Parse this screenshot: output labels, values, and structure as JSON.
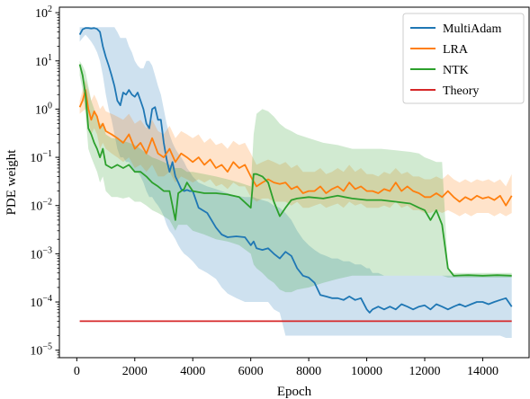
{
  "chart_data": {
    "type": "line",
    "xlabel": "Epoch",
    "ylabel": "PDE weight",
    "yscale": "log",
    "xlim": [
      -600,
      15600
    ],
    "ylim": [
      7e-06,
      130
    ],
    "xticks": [
      0,
      2000,
      4000,
      6000,
      8000,
      10000,
      12000,
      14000
    ],
    "xtick_labels": [
      "0",
      "2000",
      "4000",
      "6000",
      "8000",
      "10000",
      "12000",
      "14000"
    ],
    "ytick_mantissa": "10",
    "yticks": [
      {
        "value": 1e-05,
        "exp": "−5"
      },
      {
        "value": 0.0001,
        "exp": "−4"
      },
      {
        "value": 0.001,
        "exp": "−3"
      },
      {
        "value": 0.01,
        "exp": "−2"
      },
      {
        "value": 0.1,
        "exp": "−1"
      },
      {
        "value": 1,
        "exp": "0"
      },
      {
        "value": 10,
        "exp": "1"
      },
      {
        "value": 100,
        "exp": "2"
      }
    ],
    "grid": false,
    "legend_position": "top-right",
    "series": [
      {
        "name": "MultiAdam",
        "color": "#1f77b4",
        "x": [
          100,
          200,
          300,
          400,
          500,
          600,
          700,
          800,
          900,
          1000,
          1100,
          1200,
          1300,
          1400,
          1500,
          1600,
          1700,
          1800,
          1900,
          2000,
          2100,
          2200,
          2300,
          2400,
          2500,
          2600,
          2700,
          2800,
          2900,
          3000,
          3100,
          3200,
          3300,
          3400,
          3500,
          3600,
          3700,
          3800,
          3900,
          4000,
          4200,
          4500,
          4800,
          5000,
          5200,
          5500,
          5800,
          6000,
          6100,
          6200,
          6400,
          6600,
          6800,
          7000,
          7200,
          7400,
          7600,
          7800,
          8000,
          8200,
          8400,
          8600,
          8800,
          9000,
          9200,
          9400,
          9600,
          9800,
          10000,
          10100,
          10200,
          10400,
          10600,
          10800,
          11000,
          11200,
          11400,
          11600,
          11800,
          12000,
          12200,
          12400,
          12600,
          12800,
          13000,
          13200,
          13400,
          13600,
          13800,
          14000,
          14200,
          14400,
          14600,
          14800,
          15000
        ],
        "y": [
          35,
          45,
          48,
          48,
          47,
          48,
          46,
          40,
          20,
          12,
          8,
          5,
          3,
          1.5,
          1.2,
          2.2,
          2.0,
          2.5,
          2.0,
          1.8,
          2.2,
          1.5,
          1.0,
          0.5,
          0.4,
          1.0,
          1.1,
          0.6,
          0.6,
          0.2,
          0.09,
          0.05,
          0.08,
          0.04,
          0.03,
          0.022,
          0.02,
          0.021,
          0.02,
          0.02,
          0.009,
          0.007,
          0.0035,
          0.0025,
          0.0022,
          0.0023,
          0.0022,
          0.0015,
          0.0018,
          0.0013,
          0.0012,
          0.0013,
          0.001,
          0.0008,
          0.0011,
          0.0009,
          0.0005,
          0.00035,
          0.00032,
          0.00025,
          0.00014,
          0.00013,
          0.00012,
          0.00012,
          0.00011,
          0.00013,
          0.00011,
          0.00012,
          7e-05,
          6e-05,
          7e-05,
          8e-05,
          7e-05,
          8e-05,
          7e-05,
          9e-05,
          8e-05,
          7e-05,
          8e-05,
          8.5e-05,
          7e-05,
          9e-05,
          8e-05,
          7e-05,
          8e-05,
          9e-05,
          8e-05,
          9e-05,
          0.0001,
          0.0001,
          9e-05,
          0.0001,
          0.00011,
          0.00012,
          8e-05
        ],
        "band_low": [
          25,
          30,
          35,
          30,
          25,
          20,
          15,
          10,
          5,
          2,
          1,
          0.6,
          0.3,
          0.15,
          0.1,
          0.1,
          0.08,
          0.08,
          0.06,
          0.05,
          0.05,
          0.04,
          0.03,
          0.02,
          0.015,
          0.015,
          0.012,
          0.01,
          0.008,
          0.006,
          0.004,
          0.003,
          0.0025,
          0.002,
          0.0015,
          0.0012,
          0.001,
          0.0009,
          0.0008,
          0.0007,
          0.0005,
          0.0004,
          0.0003,
          0.0002,
          0.00015,
          0.00012,
          0.0001,
          0.0001,
          0.0001,
          0.0001,
          0.0001,
          0.0001,
          7e-05,
          6e-05,
          2e-05,
          2e-05,
          2e-05,
          2e-05,
          2e-05,
          2e-05,
          2e-05,
          2e-05,
          2e-05,
          2e-05,
          2e-05,
          2e-05,
          2e-05,
          2e-05,
          2e-05,
          2e-05,
          2e-05,
          2e-05,
          2e-05,
          2e-05,
          2e-05,
          2e-05,
          2e-05,
          2e-05,
          2e-05,
          2e-05,
          2e-05,
          2e-05,
          2e-05,
          2e-05,
          2e-05,
          2e-05,
          2e-05,
          2e-05,
          2e-05,
          2e-05,
          2e-05,
          2e-05,
          2e-05,
          1.8e-05,
          1.8e-05
        ],
        "band_high": [
          50,
          50,
          50,
          50,
          50,
          50,
          50,
          50,
          50,
          50,
          50,
          50,
          50,
          40,
          30,
          30,
          30,
          20,
          15,
          10,
          8,
          7,
          7,
          10,
          10,
          8,
          5,
          3,
          2,
          1,
          0.5,
          0.3,
          0.2,
          0.15,
          0.12,
          0.1,
          0.08,
          0.06,
          0.05,
          0.04,
          0.03,
          0.025,
          0.022,
          0.02,
          0.018,
          0.016,
          0.015,
          0.015,
          0.015,
          0.014,
          0.013,
          0.012,
          0.01,
          0.009,
          0.007,
          0.005,
          0.003,
          0.002,
          0.0015,
          0.0012,
          0.001,
          0.0009,
          0.0008,
          0.0008,
          0.0007,
          0.0007,
          0.0006,
          0.0006,
          0.0005,
          0.0005,
          0.0004,
          0.0004,
          0.00035,
          0.00035,
          0.00035,
          0.00035,
          0.00035,
          0.00035,
          0.00035,
          0.00035,
          0.00035,
          0.00035,
          0.00035,
          0.00035,
          0.00035,
          0.00035,
          0.00035,
          0.00035,
          0.00035,
          0.00035,
          0.00035,
          0.00035,
          0.00035,
          0.00035,
          0.00035
        ]
      },
      {
        "name": "LRA",
        "color": "#ff7f0e",
        "x": [
          100,
          200,
          300,
          400,
          500,
          600,
          700,
          800,
          900,
          1000,
          1200,
          1400,
          1600,
          1800,
          2000,
          2200,
          2400,
          2600,
          2800,
          3000,
          3200,
          3400,
          3600,
          3800,
          4000,
          4200,
          4400,
          4600,
          4800,
          5000,
          5200,
          5400,
          5600,
          5800,
          6000,
          6200,
          6400,
          6600,
          6800,
          7000,
          7200,
          7400,
          7600,
          7800,
          8000,
          8200,
          8400,
          8600,
          8800,
          9000,
          9200,
          9400,
          9600,
          9800,
          10000,
          10200,
          10400,
          10600,
          10800,
          11000,
          11200,
          11400,
          11600,
          11800,
          12000,
          12200,
          12400,
          12600,
          12800,
          13000,
          13200,
          13400,
          13600,
          13800,
          14000,
          14200,
          14400,
          14600,
          14800,
          15000
        ],
        "y": [
          1.1,
          1.5,
          2.5,
          1.0,
          0.6,
          0.9,
          0.7,
          0.4,
          0.5,
          0.35,
          0.3,
          0.25,
          0.2,
          0.3,
          0.15,
          0.2,
          0.12,
          0.25,
          0.12,
          0.1,
          0.15,
          0.08,
          0.12,
          0.1,
          0.08,
          0.1,
          0.07,
          0.09,
          0.06,
          0.07,
          0.05,
          0.08,
          0.06,
          0.07,
          0.04,
          0.025,
          0.03,
          0.035,
          0.03,
          0.028,
          0.03,
          0.022,
          0.025,
          0.018,
          0.02,
          0.02,
          0.025,
          0.018,
          0.022,
          0.025,
          0.02,
          0.03,
          0.022,
          0.025,
          0.02,
          0.02,
          0.018,
          0.022,
          0.02,
          0.03,
          0.02,
          0.025,
          0.02,
          0.018,
          0.015,
          0.015,
          0.018,
          0.015,
          0.02,
          0.015,
          0.012,
          0.015,
          0.013,
          0.016,
          0.014,
          0.015,
          0.013,
          0.016,
          0.01,
          0.016
        ],
        "band_low": [
          0.8,
          0.9,
          1.0,
          0.6,
          0.3,
          0.4,
          0.3,
          0.15,
          0.2,
          0.15,
          0.12,
          0.1,
          0.08,
          0.1,
          0.06,
          0.07,
          0.05,
          0.07,
          0.04,
          0.04,
          0.05,
          0.03,
          0.04,
          0.035,
          0.03,
          0.035,
          0.03,
          0.035,
          0.025,
          0.028,
          0.022,
          0.03,
          0.025,
          0.025,
          0.015,
          0.012,
          0.014,
          0.014,
          0.012,
          0.012,
          0.012,
          0.01,
          0.012,
          0.009,
          0.009,
          0.01,
          0.011,
          0.009,
          0.01,
          0.011,
          0.009,
          0.012,
          0.01,
          0.011,
          0.009,
          0.009,
          0.009,
          0.01,
          0.009,
          0.012,
          0.009,
          0.01,
          0.008,
          0.008,
          0.007,
          0.007,
          0.008,
          0.007,
          0.008,
          0.007,
          0.006,
          0.007,
          0.006,
          0.007,
          0.007,
          0.007,
          0.006,
          0.007,
          0.006,
          0.007
        ],
        "band_high": [
          1.5,
          2.5,
          4.0,
          2.5,
          1.5,
          2.0,
          1.5,
          1.0,
          1.2,
          0.9,
          0.8,
          0.7,
          0.6,
          0.8,
          0.5,
          0.6,
          0.4,
          0.6,
          0.35,
          0.3,
          0.45,
          0.25,
          0.35,
          0.3,
          0.25,
          0.3,
          0.2,
          0.25,
          0.18,
          0.2,
          0.15,
          0.22,
          0.18,
          0.2,
          0.12,
          0.07,
          0.08,
          0.09,
          0.08,
          0.07,
          0.08,
          0.06,
          0.07,
          0.05,
          0.05,
          0.05,
          0.06,
          0.045,
          0.05,
          0.06,
          0.05,
          0.07,
          0.05,
          0.06,
          0.045,
          0.045,
          0.04,
          0.05,
          0.045,
          0.06,
          0.045,
          0.05,
          0.04,
          0.04,
          0.035,
          0.035,
          0.04,
          0.035,
          0.045,
          0.035,
          0.03,
          0.035,
          0.03,
          0.035,
          0.032,
          0.035,
          0.03,
          0.035,
          0.025,
          0.045
        ]
      },
      {
        "name": "NTK",
        "color": "#2ca02c",
        "x": [
          100,
          200,
          300,
          400,
          500,
          600,
          700,
          800,
          900,
          1000,
          1200,
          1400,
          1600,
          1800,
          2000,
          2200,
          2400,
          2600,
          2800,
          3000,
          3200,
          3400,
          3500,
          3600,
          3700,
          3800,
          4000,
          4400,
          4800,
          5200,
          5600,
          6000,
          6100,
          6200,
          6400,
          6600,
          6800,
          7000,
          7200,
          7400,
          7600,
          8000,
          8500,
          9000,
          9500,
          10000,
          10500,
          11000,
          11500,
          11800,
          12000,
          12200,
          12400,
          12600,
          12800,
          13000,
          13500,
          14000,
          14500,
          15000
        ],
        "y": [
          8.5,
          5.0,
          2.0,
          0.4,
          0.3,
          0.2,
          0.15,
          0.1,
          0.15,
          0.07,
          0.06,
          0.07,
          0.06,
          0.07,
          0.05,
          0.05,
          0.04,
          0.03,
          0.025,
          0.02,
          0.02,
          0.005,
          0.018,
          0.02,
          0.022,
          0.03,
          0.02,
          0.018,
          0.018,
          0.017,
          0.015,
          0.009,
          0.045,
          0.045,
          0.04,
          0.03,
          0.012,
          0.006,
          0.009,
          0.013,
          0.014,
          0.015,
          0.014,
          0.016,
          0.014,
          0.013,
          0.013,
          0.012,
          0.011,
          0.009,
          0.008,
          0.005,
          0.008,
          0.004,
          0.0005,
          0.00035,
          0.00036,
          0.00035,
          0.00036,
          0.00035
        ],
        "band_low": [
          5.0,
          2.5,
          0.8,
          0.15,
          0.1,
          0.07,
          0.05,
          0.03,
          0.04,
          0.02,
          0.015,
          0.015,
          0.014,
          0.015,
          0.012,
          0.012,
          0.01,
          0.008,
          0.007,
          0.006,
          0.005,
          0.003,
          0.004,
          0.004,
          0.004,
          0.004,
          0.003,
          0.0025,
          0.002,
          0.0018,
          0.0015,
          0.001,
          0.0006,
          0.0005,
          0.0004,
          0.0003,
          0.00025,
          0.00018,
          0.00016,
          0.00016,
          0.00018,
          0.0002,
          0.00025,
          0.0003,
          0.00035,
          0.00035,
          0.00035,
          0.00035,
          0.00035,
          0.00035,
          0.00035,
          0.00035,
          0.00035,
          0.00035,
          0.00032,
          0.00032,
          0.00032,
          0.00032,
          0.00032,
          0.00032
        ],
        "band_high": [
          10,
          8,
          6,
          3,
          1.5,
          1.0,
          0.7,
          0.5,
          0.5,
          0.3,
          0.25,
          0.25,
          0.22,
          0.2,
          0.18,
          0.15,
          0.12,
          0.1,
          0.09,
          0.08,
          0.07,
          0.06,
          0.06,
          0.06,
          0.055,
          0.05,
          0.05,
          0.045,
          0.04,
          0.035,
          0.03,
          0.025,
          0.3,
          0.8,
          1.0,
          0.9,
          0.7,
          0.5,
          0.4,
          0.35,
          0.3,
          0.25,
          0.2,
          0.18,
          0.15,
          0.15,
          0.15,
          0.14,
          0.13,
          0.12,
          0.1,
          0.09,
          0.08,
          0.08,
          0.0005,
          0.0004,
          0.0004,
          0.0004,
          0.0004,
          0.0004
        ]
      },
      {
        "name": "Theory",
        "color": "#d62728",
        "x": [
          100,
          15000
        ],
        "y": [
          4e-05,
          4e-05
        ]
      }
    ]
  }
}
